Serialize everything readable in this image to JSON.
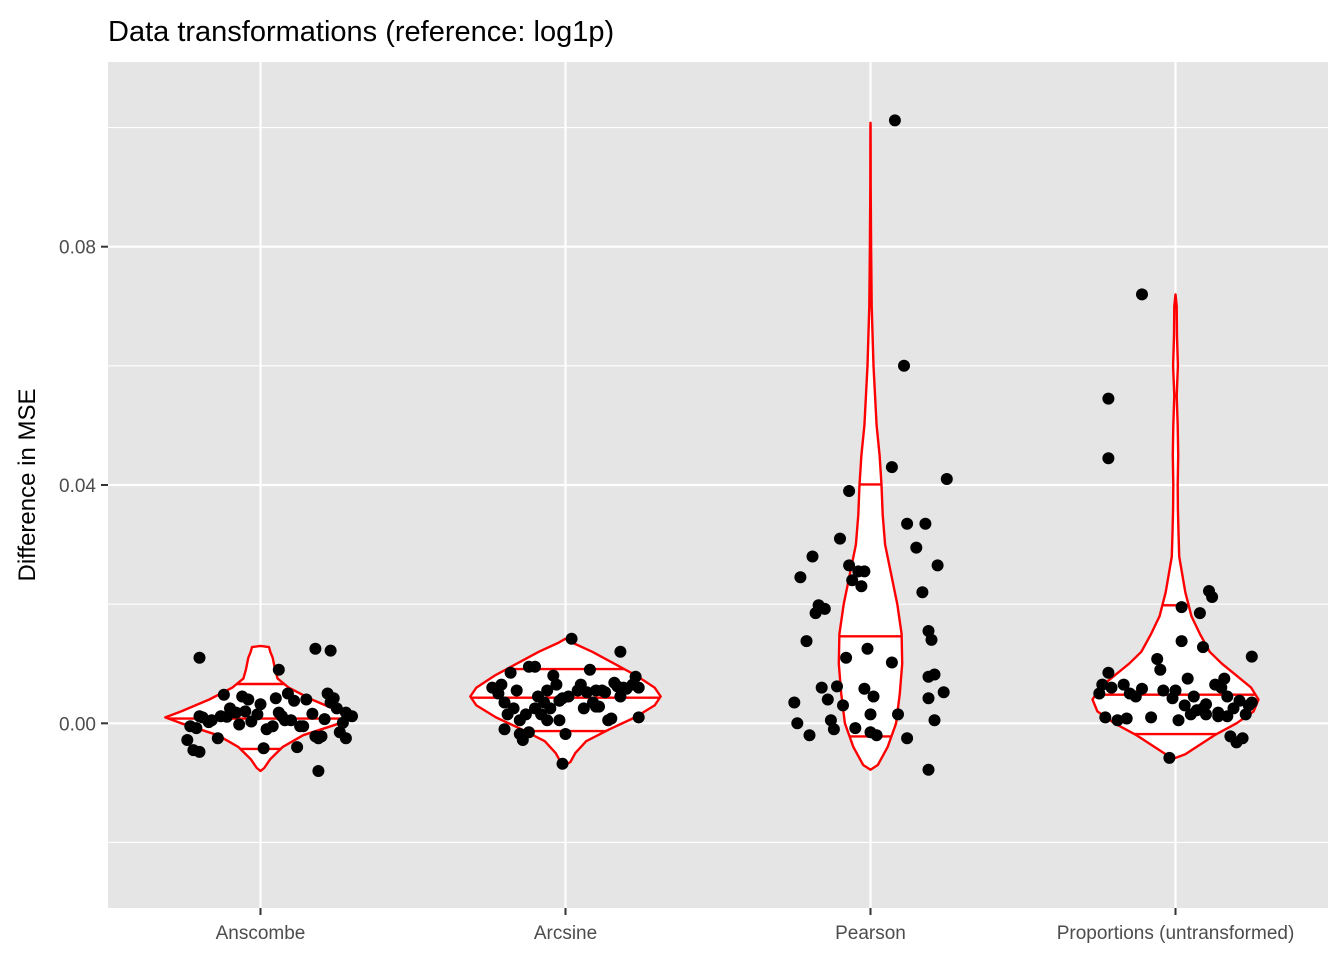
{
  "chart_data": {
    "type": "violin",
    "title": "Data transformations (reference: log1p)",
    "xlabel": "",
    "ylabel": "Difference in MSE",
    "categories": [
      "Anscombe",
      "Arcsine",
      "Pearson",
      "Proportions (untransformed)"
    ],
    "ylim": [
      -0.031,
      0.111
    ],
    "yticks": [
      0.0,
      0.04,
      0.08
    ],
    "ytick_labels": [
      "0.00",
      "0.04",
      "0.08"
    ],
    "grid": true,
    "legend": "none",
    "colors": {
      "panel": "#e5e5e5",
      "grid": "#ffffff",
      "violin": "#ff0000",
      "points": "#000000"
    },
    "violins": [
      {
        "category": "Anscombe",
        "quantiles": [
          -0.0043,
          0.0008,
          0.0066
        ],
        "profile": [
          [
            -0.008,
            0.0
          ],
          [
            -0.0075,
            0.03
          ],
          [
            -0.006,
            0.08
          ],
          [
            -0.004,
            0.18
          ],
          [
            -0.002,
            0.35
          ],
          [
            0.0,
            0.65
          ],
          [
            0.001,
            0.78
          ],
          [
            0.002,
            0.65
          ],
          [
            0.004,
            0.42
          ],
          [
            0.006,
            0.23
          ],
          [
            0.0075,
            0.14
          ],
          [
            0.009,
            0.12
          ],
          [
            0.011,
            0.1
          ],
          [
            0.012,
            0.08
          ],
          [
            0.0128,
            0.07
          ],
          [
            0.013,
            0.0
          ]
        ],
        "points": [
          [
            -0.23,
            -0.0005
          ],
          [
            -0.22,
            -0.0045
          ],
          [
            -0.19,
            0.001
          ],
          [
            -0.17,
            0.0002
          ],
          [
            -0.14,
            -0.0025
          ],
          [
            -0.12,
            0.0048
          ],
          [
            -0.11,
            0.0011
          ],
          [
            -0.08,
            0.0018
          ],
          [
            -0.07,
            -0.0002
          ],
          [
            -0.06,
            0.0045
          ],
          [
            -0.03,
            0.0003
          ],
          [
            -0.01,
            0.0015
          ],
          [
            0.0,
            0.0032
          ],
          [
            0.02,
            -0.001
          ],
          [
            0.05,
            0.0042
          ],
          [
            0.07,
            0.0012
          ],
          [
            0.09,
            0.005
          ],
          [
            0.11,
            0.0038
          ],
          [
            0.14,
            -0.0005
          ],
          [
            0.17,
            0.0016
          ],
          [
            0.19,
            -0.0025
          ],
          [
            0.21,
            0.0007
          ],
          [
            0.24,
            0.0042
          ],
          [
            0.26,
            -0.0015
          ],
          [
            0.28,
            0.0018
          ],
          [
            -0.2,
            -0.0048
          ],
          [
            -0.1,
            0.0025
          ],
          [
            -0.04,
            0.004
          ],
          [
            0.01,
            -0.0042
          ],
          [
            0.04,
            -0.0005
          ],
          [
            0.08,
            0.0005
          ],
          [
            0.12,
            -0.004
          ],
          [
            0.15,
            0.004
          ],
          [
            0.18,
            -0.0022
          ],
          [
            0.2,
            -0.0022
          ],
          [
            0.22,
            0.005
          ],
          [
            0.25,
            0.0025
          ],
          [
            0.27,
            0.0001
          ],
          [
            0.3,
            0.0012
          ],
          [
            -0.24,
            -0.0028
          ],
          [
            -0.21,
            -0.0008
          ],
          [
            -0.16,
            0.0005
          ],
          [
            -0.13,
            0.0012
          ],
          [
            -0.2,
            0.0012
          ],
          [
            -0.05,
            0.002
          ],
          [
            0.06,
            0.0018
          ],
          [
            0.1,
            0.0005
          ],
          [
            0.13,
            -0.0005
          ],
          [
            0.23,
            0.0035
          ],
          [
            0.28,
            -0.0025
          ],
          [
            -0.2,
            0.011
          ],
          [
            0.06,
            0.009
          ],
          [
            0.18,
            0.0125
          ],
          [
            0.23,
            0.0122
          ],
          [
            0.19,
            -0.008
          ]
        ]
      },
      {
        "category": "Arcsine",
        "quantiles": [
          -0.0013,
          0.0043,
          0.0091
        ],
        "profile": [
          [
            -0.007,
            0.0
          ],
          [
            -0.0065,
            0.04
          ],
          [
            -0.005,
            0.08
          ],
          [
            -0.003,
            0.17
          ],
          [
            -0.001,
            0.36
          ],
          [
            0.001,
            0.57
          ],
          [
            0.003,
            0.73
          ],
          [
            0.0045,
            0.78
          ],
          [
            0.006,
            0.73
          ],
          [
            0.008,
            0.58
          ],
          [
            0.01,
            0.4
          ],
          [
            0.012,
            0.22
          ],
          [
            0.0135,
            0.06
          ],
          [
            0.0142,
            0.0
          ]
        ],
        "points": [
          [
            -0.24,
            0.006
          ],
          [
            -0.22,
            0.005
          ],
          [
            -0.21,
            0.0065
          ],
          [
            -0.2,
            0.0035
          ],
          [
            -0.19,
            0.0015
          ],
          [
            -0.18,
            0.0085
          ],
          [
            -0.17,
            0.0025
          ],
          [
            -0.16,
            0.0055
          ],
          [
            -0.15,
            0.0005
          ],
          [
            -0.15,
            -0.0018
          ],
          [
            -0.14,
            -0.0028
          ],
          [
            -0.13,
            0.0015
          ],
          [
            -0.12,
            0.0095
          ],
          [
            -0.1,
            0.0095
          ],
          [
            -0.1,
            0.0025
          ],
          [
            -0.09,
            0.0045
          ],
          [
            -0.08,
            0.0015
          ],
          [
            -0.07,
            0.0035
          ],
          [
            -0.06,
            0.0055
          ],
          [
            -0.05,
            0.0025
          ],
          [
            -0.04,
            0.008
          ],
          [
            -0.03,
            0.0065
          ],
          [
            -0.02,
            0.0038
          ],
          [
            -0.01,
            0.0042
          ],
          [
            0.0,
            -0.0018
          ],
          [
            0.01,
            0.0045
          ],
          [
            0.02,
            0.0142
          ],
          [
            0.04,
            0.0055
          ],
          [
            0.05,
            0.0065
          ],
          [
            0.06,
            0.0025
          ],
          [
            0.07,
            0.0052
          ],
          [
            0.08,
            0.009
          ],
          [
            0.09,
            0.0035
          ],
          [
            0.1,
            0.0028
          ],
          [
            0.11,
            0.0028
          ],
          [
            0.12,
            0.0055
          ],
          [
            0.13,
            0.0052
          ],
          [
            0.15,
            0.0008
          ],
          [
            0.16,
            0.0068
          ],
          [
            0.17,
            0.0062
          ],
          [
            0.18,
            0.0045
          ],
          [
            0.19,
            0.006
          ],
          [
            0.2,
            0.0058
          ],
          [
            0.22,
            0.0065
          ],
          [
            0.23,
            0.0078
          ],
          [
            0.24,
            0.006
          ],
          [
            0.24,
            0.001
          ],
          [
            0.18,
            0.012
          ],
          [
            -0.01,
            -0.0068
          ],
          [
            -0.12,
            -0.0015
          ],
          [
            -0.06,
            0.0005
          ],
          [
            0.1,
            0.0055
          ],
          [
            0.14,
            0.0005
          ],
          [
            -0.2,
            -0.001
          ],
          [
            -0.02,
            0.0005
          ]
        ]
      },
      {
        "category": "Pearson",
        "quantiles": [
          -0.0022,
          0.0146,
          0.0401
        ],
        "profile": [
          [
            -0.0078,
            0.0
          ],
          [
            -0.007,
            0.06
          ],
          [
            -0.004,
            0.14
          ],
          [
            0.0,
            0.21
          ],
          [
            0.005,
            0.24
          ],
          [
            0.01,
            0.26
          ],
          [
            0.015,
            0.255
          ],
          [
            0.02,
            0.22
          ],
          [
            0.025,
            0.17
          ],
          [
            0.03,
            0.12
          ],
          [
            0.035,
            0.1
          ],
          [
            0.04,
            0.09
          ],
          [
            0.045,
            0.075
          ],
          [
            0.05,
            0.05
          ],
          [
            0.06,
            0.025
          ],
          [
            0.07,
            0.01
          ],
          [
            0.08,
            0.005
          ],
          [
            0.09,
            0.002
          ],
          [
            0.1,
            0.0005
          ],
          [
            0.1008,
            0.0
          ]
        ],
        "points": [
          [
            -0.25,
            0.0035
          ],
          [
            -0.24,
            0.0
          ],
          [
            -0.23,
            0.0245
          ],
          [
            -0.21,
            0.0138
          ],
          [
            -0.2,
            -0.002
          ],
          [
            -0.19,
            0.028
          ],
          [
            -0.18,
            0.0185
          ],
          [
            -0.17,
            0.0198
          ],
          [
            -0.16,
            0.006
          ],
          [
            -0.15,
            0.0192
          ],
          [
            -0.14,
            0.004
          ],
          [
            -0.13,
            0.0005
          ],
          [
            -0.12,
            -0.001
          ],
          [
            -0.11,
            0.0062
          ],
          [
            -0.1,
            0.031
          ],
          [
            -0.09,
            0.003
          ],
          [
            -0.08,
            0.011
          ],
          [
            -0.07,
            0.0265
          ],
          [
            -0.06,
            0.024
          ],
          [
            -0.05,
            -0.0008
          ],
          [
            -0.04,
            0.0255
          ],
          [
            -0.03,
            0.023
          ],
          [
            -0.02,
            0.0058
          ],
          [
            -0.01,
            0.0125
          ],
          [
            0.0,
            -0.0015
          ],
          [
            0.01,
            0.0045
          ],
          [
            0.02,
            -0.002
          ],
          [
            -0.07,
            0.039
          ],
          [
            0.07,
            0.0102
          ],
          [
            0.07,
            0.043
          ],
          [
            0.08,
            0.1012
          ],
          [
            0.09,
            0.0015
          ],
          [
            0.11,
            0.06
          ],
          [
            0.12,
            -0.0025
          ],
          [
            0.12,
            0.0335
          ],
          [
            0.15,
            0.0295
          ],
          [
            0.17,
            0.022
          ],
          [
            0.18,
            0.0335
          ],
          [
            0.19,
            0.0155
          ],
          [
            0.19,
            0.0078
          ],
          [
            0.19,
            0.0042
          ],
          [
            0.2,
            0.014
          ],
          [
            0.21,
            0.0005
          ],
          [
            0.21,
            0.0082
          ],
          [
            0.22,
            0.0265
          ],
          [
            0.24,
            0.0052
          ],
          [
            0.25,
            0.041
          ],
          [
            0.19,
            -0.0078
          ],
          [
            -0.02,
            0.0255
          ],
          [
            0.0,
            0.0015
          ]
        ]
      },
      {
        "category": "Proportions (untransformed)",
        "quantiles": [
          -0.0018,
          0.0048,
          0.0198
        ],
        "profile": [
          [
            -0.0058,
            0.0
          ],
          [
            -0.0052,
            0.08
          ],
          [
            -0.004,
            0.17
          ],
          [
            -0.002,
            0.32
          ],
          [
            0.0,
            0.5
          ],
          [
            0.002,
            0.64
          ],
          [
            0.004,
            0.68
          ],
          [
            0.006,
            0.62
          ],
          [
            0.008,
            0.5
          ],
          [
            0.01,
            0.38
          ],
          [
            0.012,
            0.28
          ],
          [
            0.015,
            0.2
          ],
          [
            0.018,
            0.13
          ],
          [
            0.022,
            0.08
          ],
          [
            0.028,
            0.03
          ],
          [
            0.032,
            0.025
          ],
          [
            0.036,
            0.02
          ],
          [
            0.04,
            0.018
          ],
          [
            0.045,
            0.022
          ],
          [
            0.05,
            0.018
          ],
          [
            0.055,
            0.01
          ],
          [
            0.06,
            0.02
          ],
          [
            0.065,
            0.012
          ],
          [
            0.07,
            0.01
          ],
          [
            0.072,
            0.0
          ]
        ],
        "points": [
          [
            -0.25,
            0.005
          ],
          [
            -0.24,
            0.0065
          ],
          [
            -0.23,
            0.001
          ],
          [
            -0.22,
            0.0085
          ],
          [
            -0.21,
            0.006
          ],
          [
            -0.19,
            0.0005
          ],
          [
            -0.17,
            0.0065
          ],
          [
            -0.16,
            0.0008
          ],
          [
            -0.15,
            0.005
          ],
          [
            -0.13,
            0.0045
          ],
          [
            -0.11,
            0.0058
          ],
          [
            -0.22,
            0.0545
          ],
          [
            -0.22,
            0.0445
          ],
          [
            -0.11,
            0.072
          ],
          [
            -0.08,
            0.001
          ],
          [
            -0.06,
            0.0108
          ],
          [
            -0.05,
            0.009
          ],
          [
            -0.04,
            0.0055
          ],
          [
            -0.02,
            -0.0058
          ],
          [
            -0.01,
            0.0042
          ],
          [
            0.0,
            0.0055
          ],
          [
            0.01,
            0.0005
          ],
          [
            0.02,
            0.0138
          ],
          [
            0.02,
            0.0195
          ],
          [
            0.03,
            0.003
          ],
          [
            0.04,
            0.0075
          ],
          [
            0.05,
            0.0015
          ],
          [
            0.06,
            0.0045
          ],
          [
            0.07,
            0.0022
          ],
          [
            0.08,
            0.0185
          ],
          [
            0.09,
            0.0025
          ],
          [
            0.09,
            0.0128
          ],
          [
            0.1,
            0.0032
          ],
          [
            0.1,
            0.0015
          ],
          [
            0.11,
            0.0222
          ],
          [
            0.12,
            0.0212
          ],
          [
            0.13,
            0.0065
          ],
          [
            0.14,
            0.0018
          ],
          [
            0.15,
            0.006
          ],
          [
            0.16,
            0.0075
          ],
          [
            0.17,
            0.0045
          ],
          [
            0.18,
            -0.0022
          ],
          [
            0.19,
            0.0025
          ],
          [
            0.2,
            -0.0032
          ],
          [
            0.21,
            0.0038
          ],
          [
            0.22,
            -0.0025
          ],
          [
            0.23,
            0.0015
          ],
          [
            0.24,
            0.003
          ],
          [
            0.25,
            0.0035
          ],
          [
            0.25,
            0.0112
          ],
          [
            0.14,
            0.0012
          ],
          [
            0.17,
            0.0012
          ]
        ]
      }
    ]
  }
}
